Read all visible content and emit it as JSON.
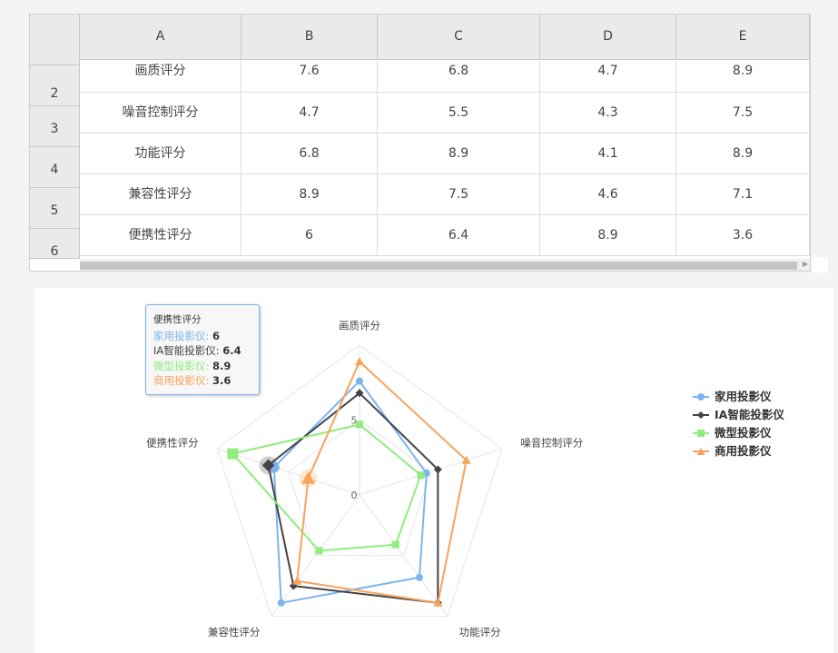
{
  "sheet": {
    "columns": [
      "A",
      "B",
      "C",
      "D",
      "E"
    ],
    "rows": [
      {
        "num": "2",
        "cells": [
          "画质评分",
          "7.6",
          "6.8",
          "4.7",
          "8.9"
        ]
      },
      {
        "num": "3",
        "cells": [
          "噪音控制评分",
          "4.7",
          "5.5",
          "4.3",
          "7.5"
        ]
      },
      {
        "num": "4",
        "cells": [
          "功能评分",
          "6.8",
          "8.9",
          "4.1",
          "8.9"
        ]
      },
      {
        "num": "5",
        "cells": [
          "兼容性评分",
          "8.9",
          "7.5",
          "4.6",
          "7.1"
        ]
      },
      {
        "num": "6",
        "cells": [
          "便携性评分",
          "6",
          "6.4",
          "8.9",
          "3.6"
        ]
      }
    ]
  },
  "tooltip": {
    "title": "便携性评分",
    "lines": [
      {
        "name": "家用投影仪",
        "value": "6",
        "color": "#7cb5ec"
      },
      {
        "name": "IA智能投影仪",
        "value": "6.4",
        "color": "#434348"
      },
      {
        "name": "微型投影仪",
        "value": "8.9",
        "color": "#90ed7d"
      },
      {
        "name": "商用投影仪",
        "value": "3.6",
        "color": "#f7a35c"
      }
    ]
  },
  "chart_data": {
    "type": "radar",
    "categories": [
      "画质评分",
      "噪音控制评分",
      "功能评分",
      "兼容性评分",
      "便携性评分"
    ],
    "axis_labels": [
      "0",
      "5"
    ],
    "ylim": [
      0,
      10
    ],
    "legend_position": "right",
    "series": [
      {
        "name": "家用投影仪",
        "color": "#7cb5ec",
        "marker": "circle",
        "values": [
          7.6,
          4.7,
          6.8,
          8.9,
          6
        ]
      },
      {
        "name": "IA智能投影仪",
        "color": "#434348",
        "marker": "diamond",
        "values": [
          6.8,
          5.5,
          8.9,
          7.5,
          6.4
        ]
      },
      {
        "name": "微型投影仪",
        "color": "#90ed7d",
        "marker": "square",
        "values": [
          4.7,
          4.3,
          4.1,
          4.6,
          8.9
        ]
      },
      {
        "name": "商用投影仪",
        "color": "#f7a35c",
        "marker": "triangle",
        "values": [
          8.9,
          7.5,
          8.9,
          7.1,
          3.6
        ]
      }
    ]
  }
}
